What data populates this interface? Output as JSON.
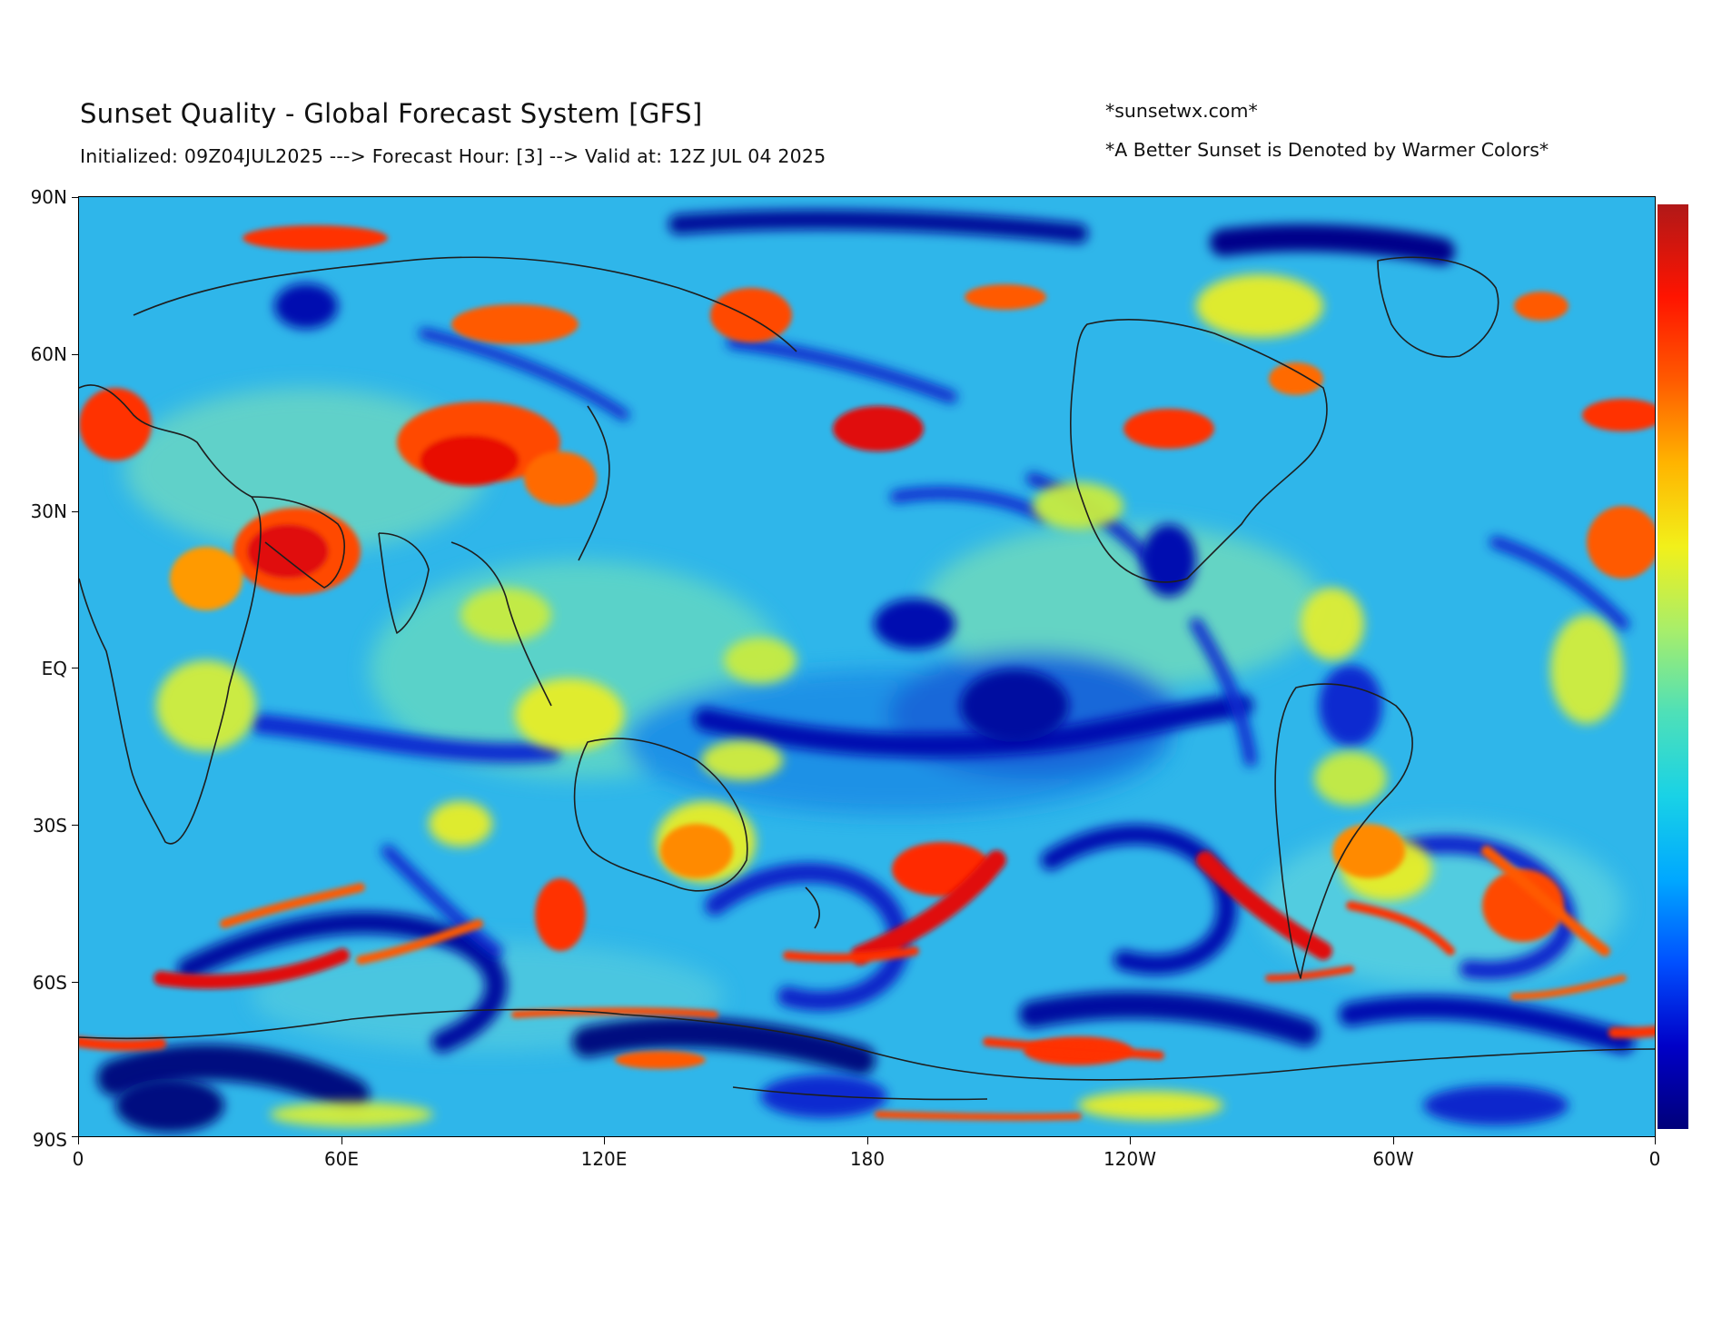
{
  "header": {
    "title": "Sunset Quality - Global Forecast System [GFS]",
    "subtitle": "Initialized: 09Z04JUL2025 ---> Forecast Hour: [3] --> Valid at: 12Z JUL 04 2025",
    "site": "*sunsetwx.com*",
    "note": "*A Better Sunset is Denoted by Warmer Colors*"
  },
  "axes": {
    "lat_labels": [
      "90N",
      "60N",
      "30N",
      "EQ",
      "30S",
      "60S",
      "90S"
    ],
    "lon_labels": [
      "0",
      "60E",
      "120E",
      "180",
      "120W",
      "60W",
      "0"
    ]
  },
  "colorbar": {
    "colors": [
      "#00007a",
      "#0000c8",
      "#0050ff",
      "#00a8ff",
      "#19d2e6",
      "#4ee0b8",
      "#a8ee6a",
      "#f2f01a",
      "#ffb400",
      "#ff5a00",
      "#ff1400",
      "#b01818"
    ]
  },
  "map": {
    "ocean_base": "#2fb6ea",
    "coastline_color": "#1e1e1e"
  }
}
